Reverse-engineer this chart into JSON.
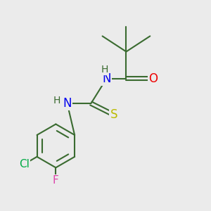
{
  "background_color": "#ebebeb",
  "bond_color": "#3a6b30",
  "atom_colors": {
    "N": "#0000ee",
    "O": "#ee0000",
    "S": "#bbbb00",
    "Cl": "#00aa44",
    "F": "#dd44aa",
    "H": "#3a6b30",
    "C": "#3a6b30"
  },
  "lw": 1.5,
  "fs": 11
}
